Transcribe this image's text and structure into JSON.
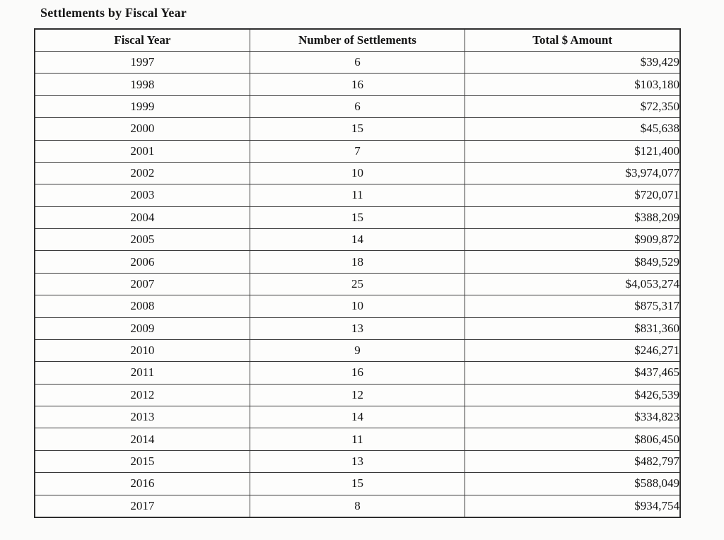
{
  "title": "Settlements by Fiscal Year",
  "table": {
    "headers": [
      "Fiscal Year",
      "Number of Settlements",
      "Total $ Amount"
    ],
    "rows": [
      {
        "year": "1997",
        "count": "6",
        "amount": "$39,429"
      },
      {
        "year": "1998",
        "count": "16",
        "amount": "$103,180"
      },
      {
        "year": "1999",
        "count": "6",
        "amount": "$72,350"
      },
      {
        "year": "2000",
        "count": "15",
        "amount": "$45,638"
      },
      {
        "year": "2001",
        "count": "7",
        "amount": "$121,400"
      },
      {
        "year": "2002",
        "count": "10",
        "amount": "$3,974,077"
      },
      {
        "year": "2003",
        "count": "11",
        "amount": "$720,071"
      },
      {
        "year": "2004",
        "count": "15",
        "amount": "$388,209"
      },
      {
        "year": "2005",
        "count": "14",
        "amount": "$909,872"
      },
      {
        "year": "2006",
        "count": "18",
        "amount": "$849,529"
      },
      {
        "year": "2007",
        "count": "25",
        "amount": "$4,053,274"
      },
      {
        "year": "2008",
        "count": "10",
        "amount": "$875,317"
      },
      {
        "year": "2009",
        "count": "13",
        "amount": "$831,360"
      },
      {
        "year": "2010",
        "count": "9",
        "amount": "$246,271"
      },
      {
        "year": "2011",
        "count": "16",
        "amount": "$437,465"
      },
      {
        "year": "2012",
        "count": "12",
        "amount": "$426,539"
      },
      {
        "year": "2013",
        "count": "14",
        "amount": "$334,823"
      },
      {
        "year": "2014",
        "count": "11",
        "amount": "$806,450"
      },
      {
        "year": "2015",
        "count": "13",
        "amount": "$482,797"
      },
      {
        "year": "2016",
        "count": "15",
        "amount": "$588,049"
      },
      {
        "year": "2017",
        "count": "8",
        "amount": "$934,754"
      }
    ]
  },
  "chart_data": {
    "type": "table",
    "title": "Settlements by Fiscal Year",
    "columns": [
      "Fiscal Year",
      "Number of Settlements",
      "Total $ Amount"
    ],
    "x": [
      1997,
      1998,
      1999,
      2000,
      2001,
      2002,
      2003,
      2004,
      2005,
      2006,
      2007,
      2008,
      2009,
      2010,
      2011,
      2012,
      2013,
      2014,
      2015,
      2016,
      2017
    ],
    "series": [
      {
        "name": "Number of Settlements",
        "values": [
          6,
          16,
          6,
          15,
          7,
          10,
          11,
          15,
          14,
          18,
          25,
          10,
          13,
          9,
          16,
          12,
          14,
          11,
          13,
          15,
          8
        ]
      },
      {
        "name": "Total $ Amount",
        "values": [
          39429,
          103180,
          72350,
          45638,
          121400,
          3974077,
          720071,
          388209,
          909872,
          849529,
          4053274,
          875317,
          831360,
          246271,
          437465,
          426539,
          334823,
          806450,
          482797,
          588049,
          934754
        ]
      }
    ]
  },
  "colors": {
    "border": "#383838",
    "text": "#141414",
    "background": "#fbfbfa"
  }
}
